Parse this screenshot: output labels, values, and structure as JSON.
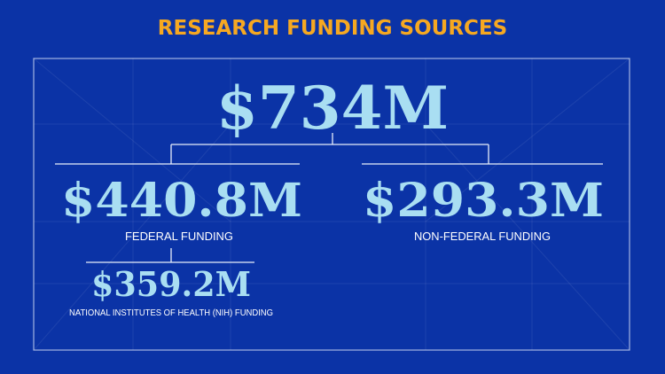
{
  "title": "RESEARCH FUNDING SOURCES",
  "total": "$734M",
  "branches": [
    {
      "amount": "$440.8M",
      "label": "FEDERAL FUNDING"
    },
    {
      "amount": "$293.3M",
      "label": "NON-FEDERAL FUNDING"
    }
  ],
  "sub_branch": {
    "amount": "$359.2M",
    "label": "NATIONAL INSTITUTES OF HEALTH (NIH) FUNDING"
  }
}
